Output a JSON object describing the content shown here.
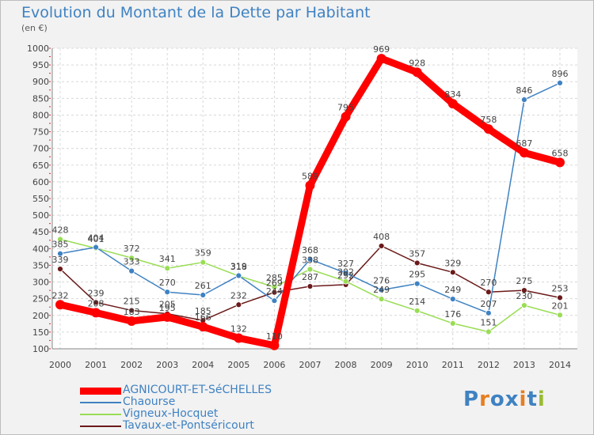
{
  "title": "Evolution du Montant de la Dette par Habitant",
  "subtitle": "(en €)",
  "logo_text": "Proxiti",
  "chart_data": {
    "type": "line",
    "title": "Evolution du Montant de la Dette par Habitant",
    "subtitle": "(en €)",
    "ylim": [
      100,
      1000
    ],
    "ytick_step": 50,
    "grid": true,
    "legend_position": "bottom-left",
    "x": [
      2000,
      2001,
      2002,
      2003,
      2004,
      2005,
      2006,
      2007,
      2008,
      2009,
      2010,
      2011,
      2012,
      2013,
      2014
    ],
    "series": [
      {
        "name": "AGNICOURT-ET-SéCHELLES",
        "color": "#ff0000",
        "values": [
          232,
          208,
          183,
          195,
          166,
          132,
          110,
          589,
          795,
          969,
          928,
          834,
          758,
          687,
          658
        ]
      },
      {
        "name": "Chaourse",
        "color": "#3f82c2",
        "values": [
          385,
          404,
          333,
          270,
          261,
          319,
          244,
          368,
          327,
          276,
          295,
          249,
          207,
          846,
          896
        ]
      },
      {
        "name": "Vigneux-Hocquet",
        "color": "#99dd55",
        "values": [
          428,
          401,
          372,
          341,
          359,
          318,
          285,
          338,
          302,
          249,
          214,
          176,
          151,
          230,
          201
        ]
      },
      {
        "name": "Tavaux-et-Pontséricourt",
        "color": "#6b1a1a",
        "values": [
          339,
          239,
          215,
          205,
          185,
          232,
          269,
          287,
          292,
          408,
          357,
          329,
          270,
          275,
          253
        ]
      }
    ]
  }
}
